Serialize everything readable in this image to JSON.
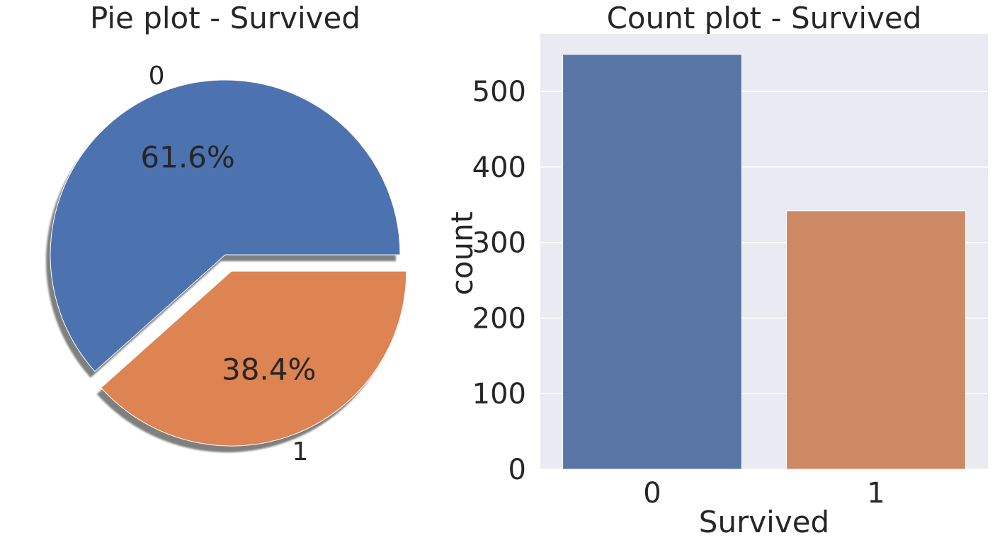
{
  "chart_data": [
    {
      "type": "pie",
      "title": "Pie plot - Survived",
      "labels": [
        "0",
        "1"
      ],
      "values": [
        549,
        342
      ],
      "percent_labels": [
        "61.6%",
        "38.4%"
      ],
      "colors": [
        "#4c72b0",
        "#dd8452"
      ],
      "explode": [
        0,
        0.1
      ],
      "shadow": true,
      "legend": "none"
    },
    {
      "type": "bar",
      "title": "Count plot - Survived",
      "categories": [
        "0",
        "1"
      ],
      "values": [
        549,
        342
      ],
      "colors": [
        "#5975a4",
        "#cc8963"
      ],
      "xlabel": "Survived",
      "ylabel": "count",
      "ylim": [
        0,
        576
      ],
      "yticks": [
        0,
        100,
        200,
        300,
        400,
        500
      ],
      "grid": true,
      "background": "#eaeaf2",
      "legend": "none"
    }
  ]
}
